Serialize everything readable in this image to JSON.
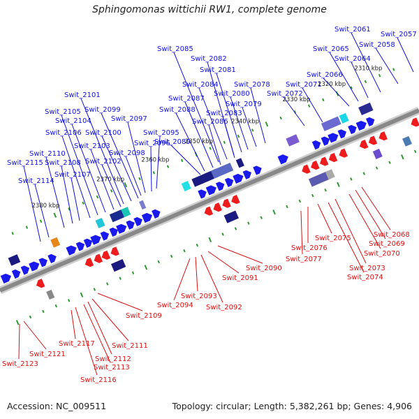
{
  "header": {
    "title": "Sphingomonas wittichii RW1, complete genome"
  },
  "footer": {
    "accession": "Accession: NC_009511",
    "stats": "Topology: circular; Length: 5,382,261 bp; Genes: 4,906"
  },
  "colors": {
    "backbone": "#888888",
    "forward_gene": "#1a1aee",
    "reverse_gene": "#ee1c1c",
    "forward_label": "#1010dd",
    "reverse_label": "#dd1010",
    "tick": "#2c9a2c",
    "kbp_text": "#222222"
  },
  "axis_ticks": [
    "2310 kbp",
    "2320 kbp",
    "2330 kbp",
    "2340 kbp",
    "2350 kbp",
    "2360 kbp",
    "2370 kbp",
    "2380 kbp"
  ],
  "forward_labels": [
    "Swit_2057",
    "Swit_2058",
    "Swit_2061",
    "Swit_2064",
    "Swit_2065",
    "Swit_2066",
    "Swit_2071",
    "Swit_2072",
    "Swit_2078",
    "Swit_2079",
    "Swit_2080",
    "Swit_2081",
    "Swit_2082",
    "Swit_2083",
    "Swit_2084",
    "Swit_2085",
    "Swit_2086",
    "Swit_2087",
    "Swit_2088",
    "Swit_2089",
    "Swit_2095",
    "Swit_2096",
    "Swit_2097",
    "Swit_2098",
    "Swit_2099",
    "Swit_2100",
    "Swit_2101",
    "Swit_2102",
    "Swit_2103",
    "Swit_2104",
    "Swit_2105",
    "Swit_2106",
    "Swit_2107",
    "Swit_2108",
    "Swit_2110",
    "Swit_2114",
    "Swit_2115"
  ],
  "reverse_labels": [
    "Swit_2068",
    "Swit_2069",
    "Swit_2070",
    "Swit_2073",
    "Swit_2074",
    "Swit_2075",
    "Swit_2076",
    "Swit_2077",
    "Swit_2090",
    "Swit_2091",
    "Swit_2092",
    "Swit_2093",
    "Swit_2094",
    "Swit_2109",
    "Swit_2111",
    "Swit_2112",
    "Swit_2113",
    "Swit_2116",
    "Swit_2117",
    "Swit_2121",
    "Swit_2123"
  ]
}
